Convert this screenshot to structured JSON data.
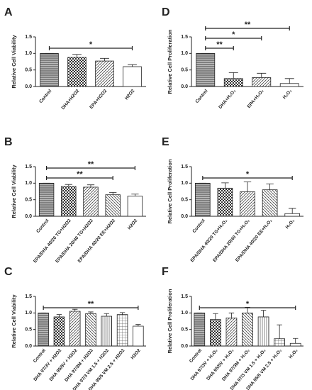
{
  "chart_data": [
    {
      "type": "bar",
      "panel": "A",
      "ylabel": "Relative Cell Viability",
      "categories": [
        "Control",
        "DHA+H2O2",
        "EPA+H2O2",
        "H2O2"
      ],
      "values": [
        1.0,
        0.88,
        0.77,
        0.6
      ],
      "errors": [
        0,
        0.09,
        0.08,
        0.06
      ],
      "ylim": [
        0,
        1.5
      ],
      "yticks": [
        {
          "value": 0,
          "label": "0.0"
        },
        {
          "value": 0.5,
          "label": "0.5"
        },
        {
          "value": 1,
          "label": "1.0"
        },
        {
          "value": 1.5,
          "label": "1.5"
        }
      ],
      "significance": [
        {
          "between": [
            0,
            3
          ],
          "label": "*"
        }
      ]
    },
    {
      "type": "bar",
      "panel": "B",
      "ylabel": "Relative Cell Viability",
      "categories": [
        "Control",
        "EPA/DHA 40/20 TG+H2O2",
        "EPA/DHA 20/40 TG+H2O2",
        "EPA/DHA 40/20 EE+H2O2",
        "H2O2"
      ],
      "values": [
        1.0,
        0.9,
        0.88,
        0.65,
        0.61
      ],
      "errors": [
        0,
        0.06,
        0.07,
        0.07,
        0.06
      ],
      "ylim": [
        0,
        1.5
      ],
      "yticks": [
        {
          "value": 0,
          "label": "0.0"
        },
        {
          "value": 0.5,
          "label": "0.5"
        },
        {
          "value": 1,
          "label": "1.0"
        },
        {
          "value": 1.5,
          "label": "1.5"
        }
      ],
      "significance": [
        {
          "between": [
            0,
            3
          ],
          "label": "**"
        },
        {
          "between": [
            0,
            4
          ],
          "label": "**"
        }
      ]
    },
    {
      "type": "bar",
      "panel": "C",
      "ylabel": "Relative Cell Viability",
      "categories": [
        "Control",
        "DHA 97/3V + H2O2",
        "DHA 95/5V + H2O2",
        "DHA 97/3M + H2O2",
        "DHA 97/3 VM 1.5 + H2O2",
        "DHA 95/5 VM 2.5 + H2O2",
        "H2O2"
      ],
      "values": [
        1.0,
        0.88,
        1.05,
        0.98,
        0.9,
        0.95,
        0.6
      ],
      "errors": [
        0,
        0.07,
        0.06,
        0.05,
        0.08,
        0.06,
        0.05
      ],
      "ylim": [
        0,
        1.5
      ],
      "yticks": [
        {
          "value": 0,
          "label": "0.0"
        },
        {
          "value": 0.5,
          "label": "0.5"
        },
        {
          "value": 1,
          "label": "1.0"
        },
        {
          "value": 1.5,
          "label": "1.5"
        }
      ],
      "significance": [
        {
          "between": [
            0,
            6
          ],
          "label": "**"
        }
      ]
    },
    {
      "type": "bar",
      "panel": "D",
      "ylabel": "Relative Cell Proliferation",
      "categories": [
        "Control",
        "DHA+H₂O₂",
        "EPA+H₂O₂",
        "H₂O₂"
      ],
      "values": [
        1.0,
        0.24,
        0.27,
        0.09
      ],
      "errors": [
        0,
        0.18,
        0.13,
        0.15
      ],
      "ylim": [
        0,
        1.5
      ],
      "yticks": [
        {
          "value": 0,
          "label": "0.0"
        },
        {
          "value": 0.5,
          "label": "0.5"
        },
        {
          "value": 1,
          "label": "1.0"
        },
        {
          "value": 1.5,
          "label": "1.5"
        }
      ],
      "significance": [
        {
          "between": [
            0,
            1
          ],
          "label": "**"
        },
        {
          "between": [
            0,
            2
          ],
          "label": "*"
        },
        {
          "between": [
            0,
            3
          ],
          "label": "**"
        }
      ]
    },
    {
      "type": "bar",
      "panel": "E",
      "ylabel": "Relative Cell Proliferation",
      "categories": [
        "Control",
        "EPA/DHA 40/20 TG+H₂O₂",
        "EPA/DHA 20/40 TG+H₂O₂",
        "EPA/DHA 40/20 EE+H₂O₂",
        "H₂O₂"
      ],
      "values": [
        1.0,
        0.85,
        0.74,
        0.8,
        0.08
      ],
      "errors": [
        0,
        0.16,
        0.3,
        0.18,
        0.16
      ],
      "ylim": [
        0,
        1.5
      ],
      "yticks": [
        {
          "value": 0,
          "label": "0.0"
        },
        {
          "value": 0.5,
          "label": "0.5"
        },
        {
          "value": 1,
          "label": "1.0"
        },
        {
          "value": 1.5,
          "label": "1.5"
        }
      ],
      "significance": [
        {
          "between": [
            0,
            4
          ],
          "label": "*"
        }
      ]
    },
    {
      "type": "bar",
      "panel": "F",
      "ylabel": "Relative Cell Proliferation",
      "categories": [
        "Control",
        "DHA 97/3V + H₂O₂",
        "DHA 95/5V + H₂O₂",
        "DHA 97/3M + H₂O₂",
        "DHA 97/3 VM 1.5 + H₂O₂",
        "DHA 95/5 VM 2.5 + H₂O₂",
        "H₂O₂"
      ],
      "values": [
        1.0,
        0.8,
        0.85,
        1.0,
        0.88,
        0.22,
        0.08
      ],
      "errors": [
        0,
        0.18,
        0.15,
        0.17,
        0.2,
        0.42,
        0.15
      ],
      "ylim": [
        0,
        1.5
      ],
      "yticks": [
        {
          "value": 0,
          "label": "0.0"
        },
        {
          "value": 0.5,
          "label": "0.5"
        },
        {
          "value": 1,
          "label": "1.0"
        },
        {
          "value": 1.5,
          "label": "1.5"
        }
      ],
      "significance": [
        {
          "between": [
            0,
            6
          ],
          "label": "*"
        }
      ]
    }
  ]
}
